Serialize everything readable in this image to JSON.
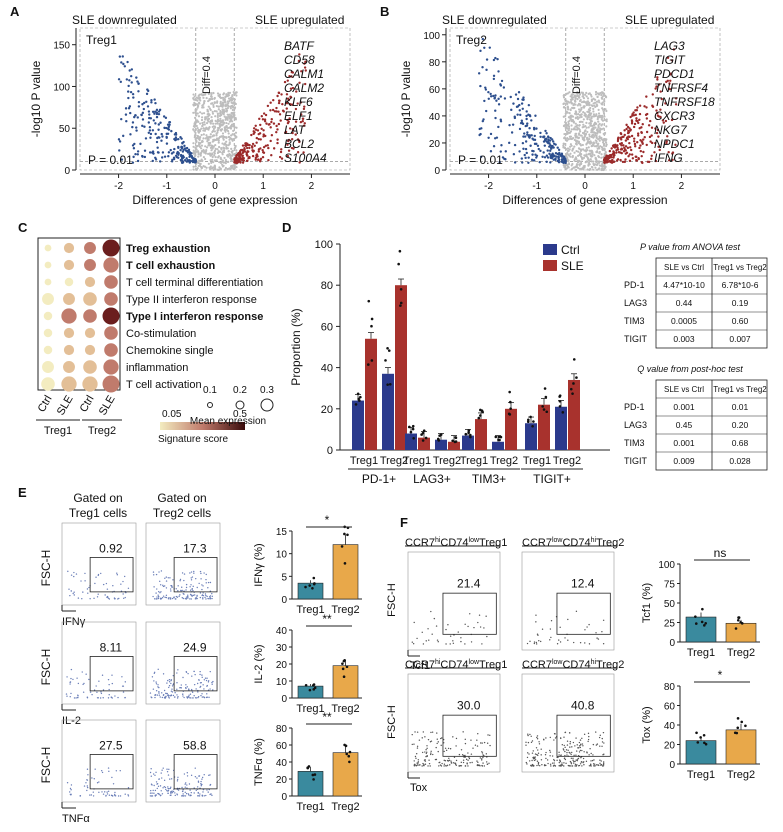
{
  "panels": {
    "A": {
      "letter": "A",
      "left_label": "SLE downregulated",
      "right_label": "SLE upregulated",
      "cell": "Treg1",
      "diff": "Diff=0.4",
      "p": "P = 0.01",
      "genes": [
        "BATF",
        "CD58",
        "CALM1",
        "CALM2",
        "KLF6",
        "ELF1",
        "LAT",
        "BCL2",
        "S100A4"
      ],
      "yticks": [
        "0",
        "50",
        "100",
        "150"
      ],
      "xticks": [
        "-2",
        "-1",
        "0",
        "1",
        "2"
      ],
      "xlabel": "Differences of gene expression",
      "ylabel": "-log10 P value"
    },
    "B": {
      "letter": "B",
      "left_label": "SLE downregulated",
      "right_label": "SLE upregulated",
      "cell": "Treg2",
      "diff": "Diff=0.4",
      "p": "P = 0.01",
      "genes": [
        "LAG3",
        "TIGIT",
        "PDCD1",
        "TNFRSF4",
        "TNFRSF18",
        "CXCR3",
        "NKG7",
        "NPDC1",
        "IFNG"
      ],
      "yticks": [
        "0",
        "20",
        "40",
        "60",
        "80",
        "100"
      ],
      "xticks": [
        "-2",
        "-1",
        "0",
        "1",
        "2"
      ],
      "xlabel": "Differences of gene expression",
      "ylabel": "-log10 P value"
    },
    "C": {
      "letter": "C",
      "rows": [
        {
          "label": "Treg exhaustion",
          "bold": true
        },
        {
          "label": "T cell exhaustion",
          "bold": true
        },
        {
          "label": "T cell terminal differentiation",
          "bold": false
        },
        {
          "label": "Type II interferon response",
          "bold": false
        },
        {
          "label": "Type I interferon response",
          "bold": true
        },
        {
          "label": "Co-stimulation",
          "bold": false
        },
        {
          "label": "Chemokine single",
          "bold": false
        },
        {
          "label": "inflammation",
          "bold": false
        },
        {
          "label": "T cell activation",
          "bold": false
        }
      ],
      "columns": [
        "Ctrl",
        "SLE",
        "Ctrl",
        "SLE"
      ],
      "groups": [
        "Treg1",
        "Treg2"
      ],
      "legend_score_title": "Signature score",
      "legend_score_ticks": [
        "0.05",
        "0.5"
      ],
      "legend_size_title": "Mean expression",
      "legend_size_ticks": [
        "0.1",
        "0.2",
        "0.3"
      ]
    },
    "D": {
      "letter": "D",
      "ylabel": "Proportion (%)",
      "yticks": [
        "0",
        "20",
        "40",
        "60",
        "80",
        "100"
      ],
      "legend": [
        "Ctrl",
        "SLE"
      ],
      "markers": [
        "PD-1+",
        "LAG3+",
        "TIM3+",
        "TIGIT+"
      ],
      "groups": [
        "Treg1",
        "Treg2"
      ],
      "anova_title": "P value from ANOVA test",
      "anova_header": [
        "SLE vs Ctrl",
        "Treg1 vs Treg2"
      ],
      "anova_rows": [
        [
          "PD-1",
          "4.47*10-10",
          "6.78*10-6"
        ],
        [
          "LAG3",
          "0.44",
          "0.19"
        ],
        [
          "TIM3",
          "0.0005",
          "0.60"
        ],
        [
          "TIGIT",
          "0.003",
          "0.007"
        ]
      ],
      "q_title": "Q value from post-hoc test",
      "q_header": [
        "SLE vs Ctrl",
        "Treg1 vs Treg2"
      ],
      "q_rows": [
        [
          "PD-1",
          "0.001",
          "0.01"
        ],
        [
          "LAG3",
          "0.45",
          "0.20"
        ],
        [
          "TIM3",
          "0.001",
          "0.68"
        ],
        [
          "TIGIT",
          "0.009",
          "0.028"
        ]
      ]
    },
    "E": {
      "letter": "E",
      "col1": [
        "Gated on",
        "Treg1 cells"
      ],
      "col2": [
        "Gated on",
        "Treg2 cells"
      ],
      "rows": [
        {
          "marker": "IFNγ",
          "v1": "0.92",
          "v2": "17.3",
          "ylabel": "IFNγ (%)",
          "yticks": [
            "0",
            "5",
            "10",
            "15"
          ],
          "sig": "*"
        },
        {
          "marker": "IL-2",
          "v1": "8.11",
          "v2": "24.9",
          "ylabel": "IL-2 (%)",
          "yticks": [
            "0",
            "10",
            "20",
            "30",
            "40"
          ],
          "sig": "**"
        },
        {
          "marker": "TNFα",
          "v1": "27.5",
          "v2": "58.8",
          "ylabel": "TNFα (%)",
          "yticks": [
            "0",
            "20",
            "40",
            "60",
            "80"
          ],
          "sig": "**"
        }
      ],
      "fsc": "FSC-H",
      "xcats": [
        "Treg1",
        "Treg2"
      ]
    },
    "F": {
      "letter": "F",
      "title1": "CCR7hiCD74lowTreg1",
      "title2": "CCR7lowCD74hiTreg2",
      "rows": [
        {
          "marker": "Tcf1",
          "v1": "21.4",
          "v2": "12.4",
          "ylabel": "Tcf1 (%)",
          "yticks": [
            "0",
            "25",
            "50",
            "75",
            "100"
          ],
          "sig": "ns"
        },
        {
          "marker": "Tox",
          "v1": "30.0",
          "v2": "40.8",
          "ylabel": "Tox (%)",
          "yticks": [
            "0",
            "20",
            "40",
            "60",
            "80"
          ],
          "sig": "*"
        }
      ],
      "fsc": "FSC-H",
      "xcats": [
        "Treg1",
        "Treg2"
      ]
    }
  },
  "chart_data": [
    {
      "type": "bar",
      "panel": "D",
      "categories": [
        "PD-1+ Treg1",
        "PD-1+ Treg2",
        "LAG3+ Treg1",
        "LAG3+ Treg2",
        "TIM3+ Treg1",
        "TIM3+ Treg2",
        "TIGIT+ Treg1",
        "TIGIT+ Treg2"
      ],
      "series": [
        {
          "name": "Ctrl",
          "values": [
            24,
            37,
            8,
            5,
            7,
            4,
            13,
            21
          ]
        },
        {
          "name": "SLE",
          "values": [
            54,
            80,
            6,
            4,
            15,
            20,
            22,
            34
          ]
        }
      ],
      "ylim": [
        0,
        100
      ],
      "ylabel": "Proportion (%)"
    },
    {
      "type": "bar",
      "panel": "E-IFNg",
      "categories": [
        "Treg1",
        "Treg2"
      ],
      "values": [
        3.5,
        12
      ],
      "ylim": [
        0,
        15
      ],
      "ylabel": "IFNγ (%)"
    },
    {
      "type": "bar",
      "panel": "E-IL2",
      "categories": [
        "Treg1",
        "Treg2"
      ],
      "values": [
        7,
        19
      ],
      "ylim": [
        0,
        40
      ],
      "ylabel": "IL-2 (%)"
    },
    {
      "type": "bar",
      "panel": "E-TNFa",
      "categories": [
        "Treg1",
        "Treg2"
      ],
      "values": [
        29,
        51
      ],
      "ylim": [
        0,
        80
      ],
      "ylabel": "TNFα (%)"
    },
    {
      "type": "bar",
      "panel": "F-Tcf1",
      "categories": [
        "Treg1",
        "Treg2"
      ],
      "values": [
        32,
        24
      ],
      "ylim": [
        0,
        100
      ],
      "ylabel": "Tcf1 (%)"
    },
    {
      "type": "bar",
      "panel": "F-Tox",
      "categories": [
        "Treg1",
        "Treg2"
      ],
      "values": [
        24,
        35
      ],
      "ylim": [
        0,
        80
      ],
      "ylabel": "Tox (%)"
    }
  ],
  "colors": {
    "ctrl": "#2b3a8c",
    "sle": "#a8322d",
    "treg1": "#3a8a9e",
    "treg2": "#e8a84a",
    "up": "#9b2a2a",
    "down": "#2d4f8e",
    "grey": "#bdbdbd"
  }
}
